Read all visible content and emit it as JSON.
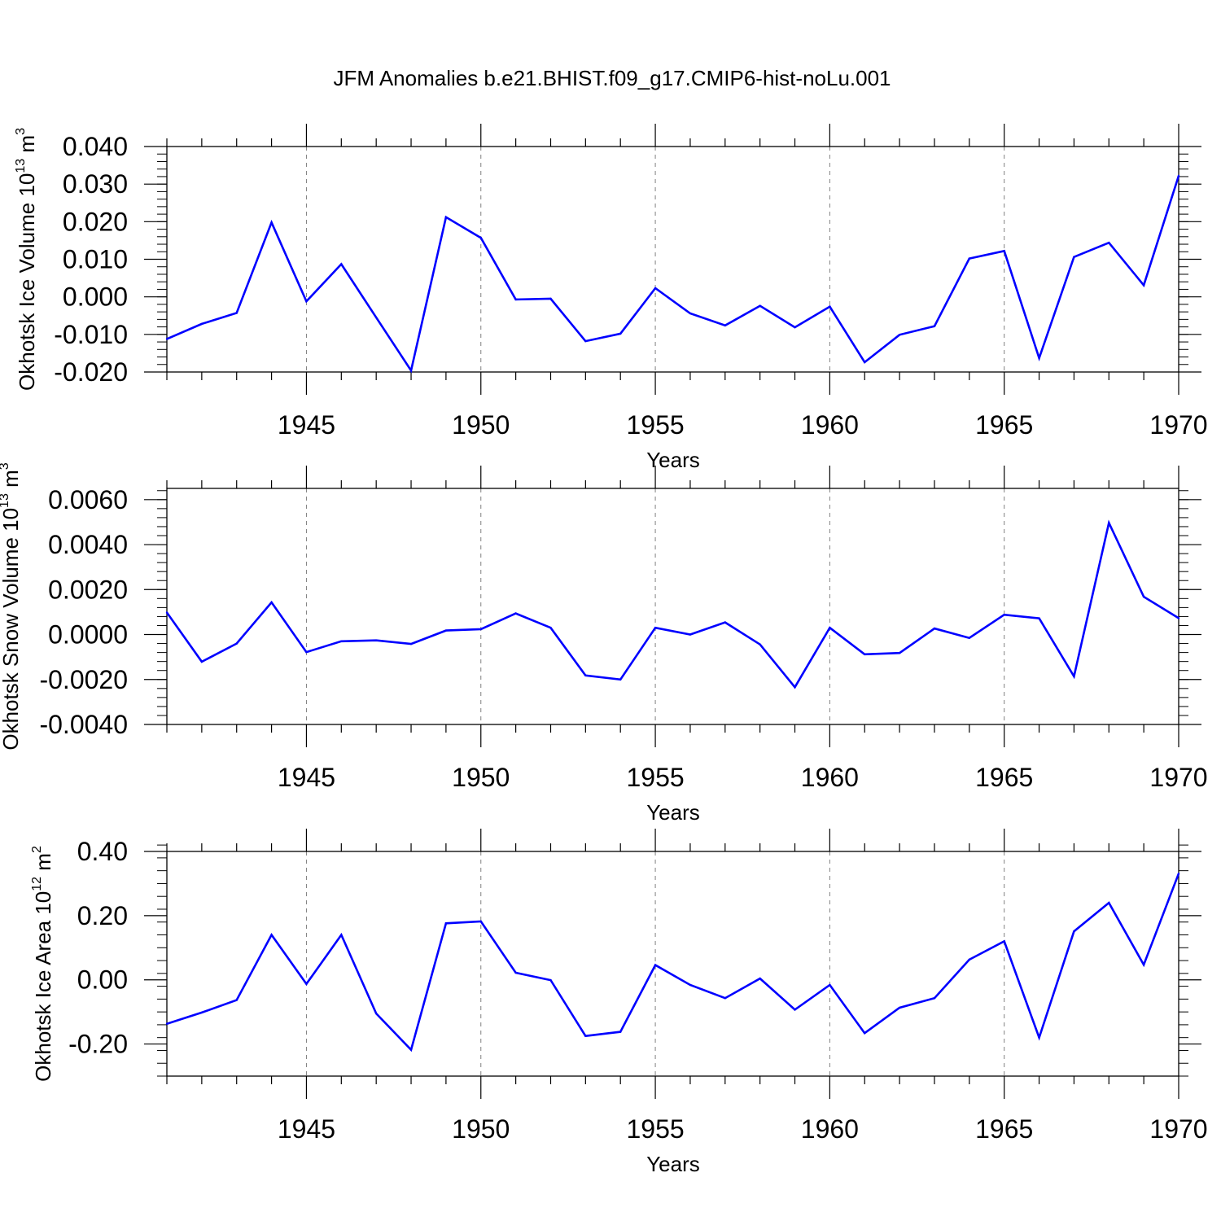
{
  "title": "JFM Anomalies b.e21.BHIST.f09_g17.CMIP6-hist-noLu.001",
  "colors": {
    "line": "#0000ff",
    "axis": "#000000",
    "grid": "#808080"
  },
  "chart_data": [
    {
      "type": "line",
      "name": "ice-volume",
      "ylabel": {
        "text": "Okhotsk Ice Volume 10",
        "exp": "13",
        "unit": " m",
        "unit_exp": "3"
      },
      "xlabel": "Years",
      "xlim": [
        1941,
        1970
      ],
      "ylim": [
        -0.02,
        0.04
      ],
      "yticks": [
        -0.02,
        -0.01,
        0.0,
        0.01,
        0.02,
        0.03,
        0.04
      ],
      "ytick_labels": [
        "-0.020",
        "-0.010",
        "0.000",
        "0.010",
        "0.020",
        "0.030",
        "0.040"
      ],
      "yminor_step": 0.002,
      "xticks": [
        1945,
        1950,
        1955,
        1960,
        1965,
        1970
      ],
      "xtick_labels": [
        "1945",
        "1950",
        "1955",
        "1960",
        "1965",
        "1970"
      ],
      "x": [
        1941,
        1942,
        1943,
        1944,
        1945,
        1946,
        1947,
        1948,
        1949,
        1950,
        1951,
        1952,
        1953,
        1954,
        1955,
        1956,
        1957,
        1958,
        1959,
        1960,
        1961,
        1962,
        1963,
        1964,
        1965,
        1966,
        1967,
        1968,
        1969,
        1970
      ],
      "values": [
        -0.0112,
        -0.0072,
        -0.0043,
        0.0198,
        -0.0012,
        0.0087,
        -0.0055,
        -0.0196,
        0.0212,
        0.0157,
        -0.0007,
        -0.0005,
        -0.0118,
        -0.0098,
        0.0023,
        -0.0044,
        -0.0076,
        -0.0024,
        -0.0081,
        -0.0026,
        -0.0174,
        -0.0101,
        -0.0078,
        0.0102,
        0.0122,
        -0.0163,
        0.0106,
        0.0144,
        0.0031,
        0.0322
      ]
    },
    {
      "type": "line",
      "name": "snow-volume",
      "ylabel": {
        "text": "Okhotsk Snow Volume 10",
        "exp": "13",
        "unit": " m",
        "unit_exp": "3"
      },
      "xlabel": "Years",
      "xlim": [
        1941,
        1970
      ],
      "ylim": [
        -0.004,
        0.0065
      ],
      "yticks": [
        -0.004,
        -0.002,
        0.0,
        0.002,
        0.004,
        0.006
      ],
      "ytick_labels": [
        "-0.0040",
        "-0.0020",
        "0.0000",
        "0.0020",
        "0.0040",
        "0.0060"
      ],
      "yminor_step": 0.0004,
      "xticks": [
        1945,
        1950,
        1955,
        1960,
        1965,
        1970
      ],
      "xtick_labels": [
        "1945",
        "1950",
        "1955",
        "1960",
        "1965",
        "1970"
      ],
      "x": [
        1941,
        1942,
        1943,
        1944,
        1945,
        1946,
        1947,
        1948,
        1949,
        1950,
        1951,
        1952,
        1953,
        1954,
        1955,
        1956,
        1957,
        1958,
        1959,
        1960,
        1961,
        1962,
        1963,
        1964,
        1965,
        1966,
        1967,
        1968,
        1969,
        1970
      ],
      "values": [
        0.00098,
        -0.00121,
        -0.0004,
        0.00143,
        -0.00078,
        -0.0003,
        -0.00026,
        -0.00042,
        0.00018,
        0.00024,
        0.00094,
        0.0003,
        -0.00182,
        -0.002,
        0.0003,
        0.0,
        0.00054,
        -0.00044,
        -0.00234,
        0.0003,
        -0.00088,
        -0.00082,
        0.00027,
        -0.00015,
        0.00088,
        0.00072,
        -0.00186,
        0.00497,
        0.00168,
        0.00073
      ]
    },
    {
      "type": "line",
      "name": "ice-area",
      "ylabel": {
        "text": "Okhotsk Ice Area 10",
        "exp": "12",
        "unit": " m",
        "unit_exp": "2"
      },
      "xlabel": "Years",
      "xlim": [
        1941,
        1970
      ],
      "ylim": [
        -0.3,
        0.4
      ],
      "yticks": [
        -0.2,
        0.0,
        0.2,
        0.4
      ],
      "ytick_labels": [
        "-0.20",
        "0.00",
        "0.20",
        "0.40"
      ],
      "yminor_step": 0.04,
      "xticks": [
        1945,
        1950,
        1955,
        1960,
        1965,
        1970
      ],
      "xtick_labels": [
        "1945",
        "1950",
        "1955",
        "1960",
        "1965",
        "1970"
      ],
      "x": [
        1941,
        1942,
        1943,
        1944,
        1945,
        1946,
        1947,
        1948,
        1949,
        1950,
        1951,
        1952,
        1953,
        1954,
        1955,
        1956,
        1957,
        1958,
        1959,
        1960,
        1961,
        1962,
        1963,
        1964,
        1965,
        1966,
        1967,
        1968,
        1969,
        1970
      ],
      "values": [
        -0.137,
        -0.102,
        -0.063,
        0.14,
        -0.013,
        0.14,
        -0.105,
        -0.218,
        0.176,
        0.182,
        0.022,
        -0.001,
        -0.175,
        -0.162,
        0.046,
        -0.016,
        -0.057,
        0.004,
        -0.093,
        -0.016,
        -0.166,
        -0.087,
        -0.057,
        0.063,
        0.12,
        -0.18,
        0.151,
        0.24,
        0.047,
        0.331
      ]
    }
  ]
}
